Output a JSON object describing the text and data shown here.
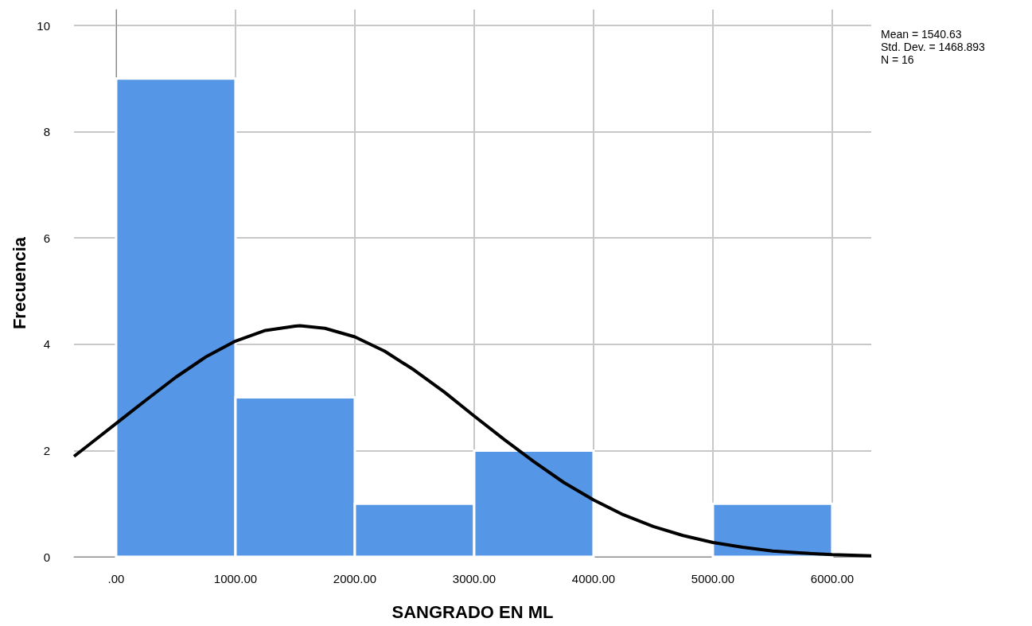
{
  "chart_data": {
    "type": "histogram",
    "xlabel": "SANGRADO EN ML",
    "ylabel": "Frecuencia",
    "annotations": [
      "Mean = 1540.63",
      "Std. Dev. = 1468.893",
      "N = 16"
    ],
    "series": [
      {
        "type": "histogram",
        "color": "#5596e6",
        "bins": [
          0,
          1000,
          2000,
          3000,
          4000,
          5000,
          6000
        ],
        "values": [
          9,
          3,
          1,
          2,
          0,
          1
        ]
      },
      {
        "type": "line",
        "color": "#000000",
        "x": [
          -353,
          -250,
          0,
          250,
          500,
          750,
          1000,
          1250,
          1500,
          1540.63,
          1750,
          2000,
          2250,
          2500,
          2750,
          3000,
          3250,
          3500,
          3750,
          4000,
          4250,
          4500,
          4750,
          5000,
          5250,
          5500,
          5750,
          6000,
          6327
        ],
        "values": [
          1.89,
          2.07,
          2.51,
          2.95,
          3.38,
          3.76,
          4.06,
          4.26,
          4.34,
          4.35,
          4.3,
          4.14,
          3.87,
          3.51,
          3.1,
          2.65,
          2.21,
          1.79,
          1.4,
          1.07,
          0.79,
          0.57,
          0.4,
          0.27,
          0.18,
          0.11,
          0.07,
          0.04,
          0.02
        ]
      }
    ],
    "xlim": [
      -353,
      6327
    ],
    "xticks": [
      {
        "value": 0,
        "label": ".00"
      },
      {
        "value": 1000,
        "label": "1000.00"
      },
      {
        "value": 2000,
        "label": "2000.00"
      },
      {
        "value": 3000,
        "label": "3000.00"
      },
      {
        "value": 4000,
        "label": "4000.00"
      },
      {
        "value": 5000,
        "label": "5000.00"
      },
      {
        "value": 6000,
        "label": "6000.00"
      }
    ],
    "ylim": [
      0,
      10.3
    ],
    "yticks": [
      0,
      2,
      4,
      6,
      8,
      10
    ],
    "grid": true
  }
}
